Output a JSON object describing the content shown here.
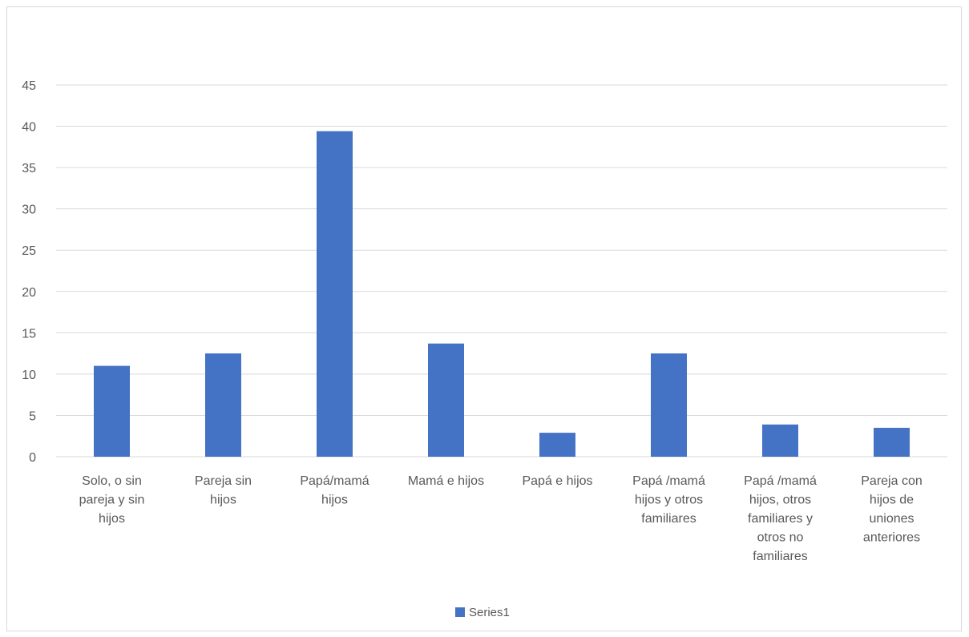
{
  "chart_data": {
    "type": "bar",
    "title": "",
    "xlabel": "",
    "ylabel": "",
    "ylim": [
      0,
      45
    ],
    "yticks": [
      0,
      5,
      10,
      15,
      20,
      25,
      30,
      35,
      40,
      45
    ],
    "grid": true,
    "legend_position": "bottom",
    "bar_color": "#4472c4",
    "categories": [
      "Solo, o sin pareja y sin hijos",
      "Pareja sin hijos",
      "Papá/mamá hijos",
      "Mamá e hijos",
      "Papá e hijos",
      "Papá /mamá hijos y otros familiares",
      "Papá /mamá hijos, otros familiares y otros no familiares",
      "Pareja con hijos de uniones anteriores"
    ],
    "category_lines": [
      [
        "Solo, o sin",
        "pareja y sin",
        "hijos"
      ],
      [
        "Pareja sin",
        "hijos"
      ],
      [
        "Papá/mamá",
        "hijos"
      ],
      [
        "Mamá e hijos"
      ],
      [
        "Papá e hijos"
      ],
      [
        "Papá /mamá",
        "hijos y otros",
        "familiares"
      ],
      [
        "Papá /mamá",
        "hijos, otros",
        "familiares y",
        "otros no",
        "familiares"
      ],
      [
        "Pareja con",
        "hijos de",
        "uniones",
        "anteriores"
      ]
    ],
    "series": [
      {
        "name": "Series1",
        "values": [
          11.0,
          12.5,
          39.4,
          13.7,
          2.9,
          12.5,
          3.9,
          3.5
        ]
      }
    ]
  }
}
